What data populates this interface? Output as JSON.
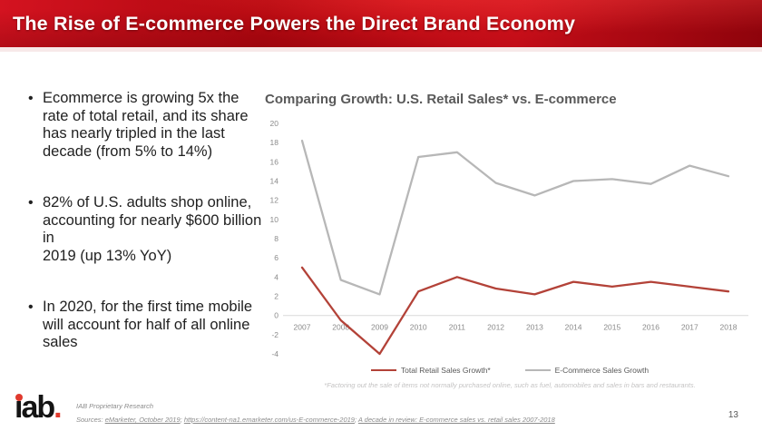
{
  "header": {
    "title": "The Rise of E-commerce Powers the Direct Brand Economy",
    "bg_color": "#c30d18"
  },
  "bullets": [
    "Ecommerce is growing 5x the rate of total retail, and its share has nearly tripled in the last decade (from 5% to 14%)",
    "82% of U.S. adults shop online, accounting for nearly $600 billion in\n2019 (up 13% YoY)",
    "In 2020, for the first time mobile will account for half of all online sales"
  ],
  "chart_data": {
    "type": "line",
    "title": "Comparing Growth: U.S. Retail Sales* vs. E-commerce",
    "x": [
      "2007",
      "2008",
      "2009",
      "2010",
      "2011",
      "2012",
      "2013",
      "2014",
      "2015",
      "2016",
      "2017",
      "2018"
    ],
    "series": [
      {
        "name": "Total Retail Sales Growth*",
        "color": "#b34238",
        "values": [
          5.0,
          -0.5,
          -4.0,
          2.5,
          4.0,
          2.8,
          2.2,
          3.5,
          3.0,
          3.5,
          3.0,
          2.5
        ]
      },
      {
        "name": "E-Commerce Sales Growth",
        "color": "#b7b7b7",
        "values": [
          18.2,
          3.7,
          2.2,
          16.5,
          17.0,
          13.8,
          12.5,
          14.0,
          14.2,
          13.7,
          15.6,
          14.5
        ]
      }
    ],
    "xlabel": "",
    "ylabel": "",
    "ylim": [
      -4,
      20
    ],
    "ytick_step": 2,
    "grid": false,
    "legend_position": "bottom",
    "footnote": "*Factoring out the sale of items not normally purchased online, such as fuel, automobiles and sales in bars and restaurants."
  },
  "footer": {
    "logo": {
      "text": "ıab",
      "period": "."
    },
    "proprietary": "IAB Proprietary Research",
    "sources": {
      "prefix": "Sources: ",
      "sep": "; ",
      "items": [
        "eMarketer, October 2019",
        "https://content-na1.emarketer.com/us-E-commerce-2019",
        "A decade in review: E-commerce sales vs. retail sales 2007-2018"
      ]
    },
    "page_number": "13"
  }
}
